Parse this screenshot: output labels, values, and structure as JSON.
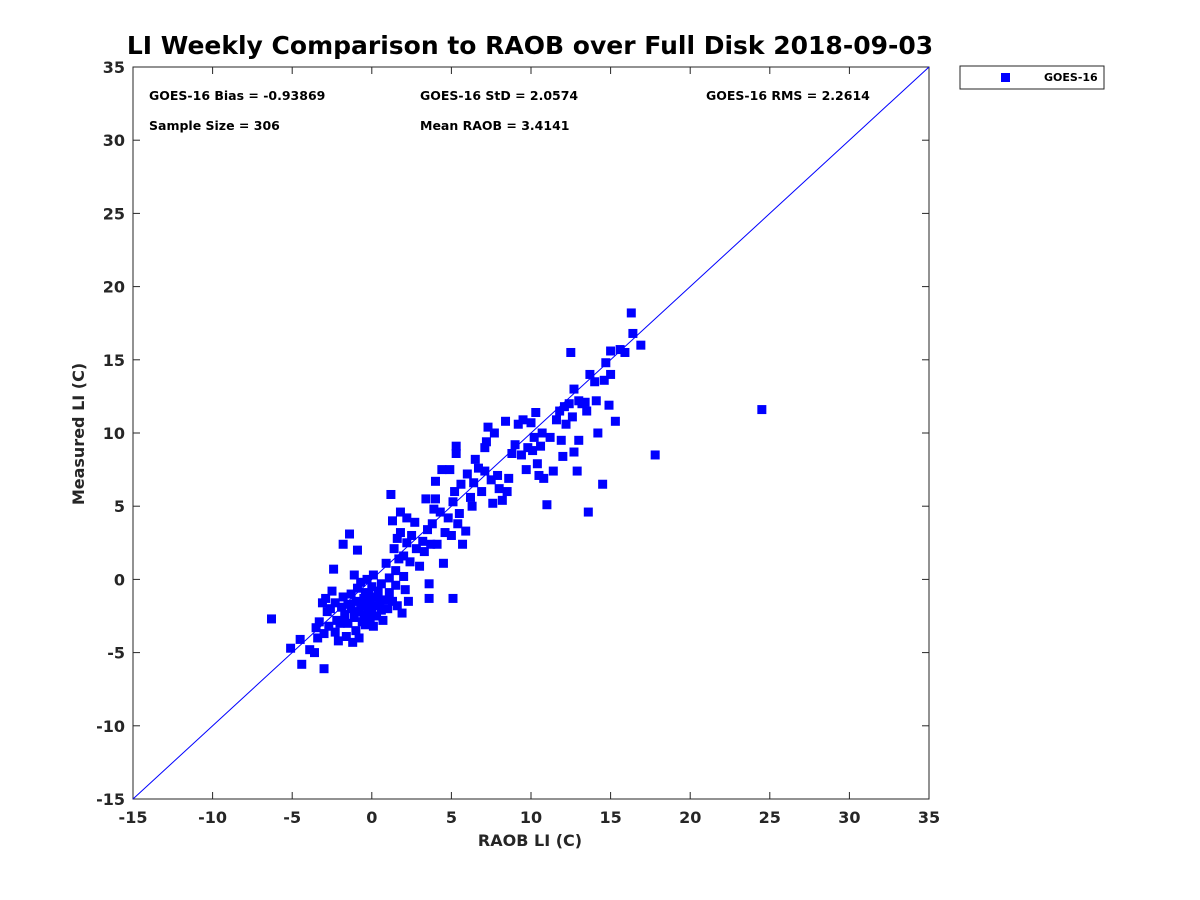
{
  "chart_data": {
    "type": "scatter",
    "title": "LI Weekly Comparison to RAOB over Full Disk 2018-09-03",
    "xlabel": "RAOB LI (C)",
    "ylabel": "Measured LI (C)",
    "xlim": [
      -15,
      35
    ],
    "ylim": [
      -15,
      35
    ],
    "xticks": [
      -15,
      -10,
      -5,
      0,
      5,
      10,
      15,
      20,
      25,
      30,
      35
    ],
    "yticks": [
      -15,
      -10,
      -5,
      0,
      5,
      10,
      15,
      20,
      25,
      30,
      35
    ],
    "grid": false,
    "legend": {
      "position": "outside-top-right",
      "entries": [
        "GOES-16"
      ]
    },
    "reference_line": {
      "name": "1:1 line",
      "x": [
        -15,
        35
      ],
      "y": [
        -15,
        35
      ]
    },
    "stats": {
      "bias": "GOES-16 Bias = -0.93869",
      "std": "GOES-16 StD = 2.0574",
      "rms": "GOES-16 RMS = 2.2614",
      "sample_size": "Sample Size = 306",
      "mean_raob": "Mean RAOB = 3.4141"
    },
    "series": [
      {
        "name": "GOES-16",
        "color": "#0000ff",
        "marker": "square",
        "points": [
          [
            -6.3,
            -2.7
          ],
          [
            -5.1,
            -4.7
          ],
          [
            -4.5,
            -4.1
          ],
          [
            -4.4,
            -5.8
          ],
          [
            -3.9,
            -4.8
          ],
          [
            -3.6,
            -5.0
          ],
          [
            -3.5,
            -3.3
          ],
          [
            -3.4,
            -4.0
          ],
          [
            -3.3,
            -2.9
          ],
          [
            -3.1,
            -1.6
          ],
          [
            -3.0,
            -6.1
          ],
          [
            -3.0,
            -3.7
          ],
          [
            -2.9,
            -1.3
          ],
          [
            -2.8,
            -2.2
          ],
          [
            -2.7,
            -3.2
          ],
          [
            -2.6,
            -2.0
          ],
          [
            -2.5,
            -0.8
          ],
          [
            -2.4,
            0.7
          ],
          [
            -2.3,
            -1.6
          ],
          [
            -2.3,
            -3.6
          ],
          [
            -2.2,
            -2.8
          ],
          [
            -2.1,
            -4.2
          ],
          [
            -2.0,
            -3.0
          ],
          [
            -1.9,
            -1.9
          ],
          [
            -1.8,
            2.4
          ],
          [
            -1.8,
            -1.2
          ],
          [
            -1.7,
            -2.4
          ],
          [
            -1.6,
            -3.9
          ],
          [
            -1.5,
            -1.7
          ],
          [
            -1.5,
            -3.0
          ],
          [
            -1.4,
            3.1
          ],
          [
            -1.3,
            -2.0
          ],
          [
            -1.3,
            -1.0
          ],
          [
            -1.2,
            -4.3
          ],
          [
            -1.1,
            -2.6
          ],
          [
            -1.1,
            0.3
          ],
          [
            -1.0,
            -1.5
          ],
          [
            -1.0,
            -3.5
          ],
          [
            -0.9,
            -0.6
          ],
          [
            -0.9,
            2.0
          ],
          [
            -0.8,
            -2.2
          ],
          [
            -0.8,
            -4.0
          ],
          [
            -0.7,
            -1.8
          ],
          [
            -0.7,
            -0.2
          ],
          [
            -0.6,
            -2.9
          ],
          [
            -0.5,
            -1.3
          ],
          [
            -0.5,
            -2.4
          ],
          [
            -0.4,
            -0.9
          ],
          [
            -0.4,
            -3.1
          ],
          [
            -0.3,
            -1.7
          ],
          [
            -0.3,
            0.0
          ],
          [
            -0.2,
            -2.2
          ],
          [
            -0.2,
            -1.1
          ],
          [
            -0.1,
            -2.7
          ],
          [
            -0.1,
            -1.5
          ],
          [
            0.0,
            -0.5
          ],
          [
            0.0,
            -2.0
          ],
          [
            0.1,
            0.3
          ],
          [
            0.1,
            -3.2
          ],
          [
            0.2,
            -1.8
          ],
          [
            0.3,
            -1.2
          ],
          [
            0.3,
            -2.5
          ],
          [
            0.4,
            -0.8
          ],
          [
            0.5,
            -1.6
          ],
          [
            0.6,
            -2.1
          ],
          [
            0.6,
            -0.3
          ],
          [
            0.7,
            -2.8
          ],
          [
            0.8,
            -1.4
          ],
          [
            0.9,
            1.1
          ],
          [
            1.0,
            -2.0
          ],
          [
            1.1,
            -0.9
          ],
          [
            1.1,
            0.1
          ],
          [
            1.2,
            5.8
          ],
          [
            1.3,
            -1.5
          ],
          [
            1.3,
            4.0
          ],
          [
            1.4,
            2.1
          ],
          [
            1.5,
            0.6
          ],
          [
            1.5,
            -0.4
          ],
          [
            1.6,
            2.8
          ],
          [
            1.6,
            -1.8
          ],
          [
            1.7,
            1.4
          ],
          [
            1.8,
            4.6
          ],
          [
            1.8,
            3.2
          ],
          [
            1.9,
            -2.3
          ],
          [
            2.0,
            0.2
          ],
          [
            2.0,
            1.6
          ],
          [
            2.1,
            -0.7
          ],
          [
            2.2,
            2.5
          ],
          [
            2.2,
            4.2
          ],
          [
            2.3,
            -1.5
          ],
          [
            2.4,
            1.2
          ],
          [
            2.5,
            3.0
          ],
          [
            2.7,
            3.9
          ],
          [
            2.8,
            2.1
          ],
          [
            3.0,
            0.9
          ],
          [
            3.2,
            2.6
          ],
          [
            3.3,
            1.9
          ],
          [
            3.4,
            5.5
          ],
          [
            3.5,
            3.4
          ],
          [
            3.6,
            -0.3
          ],
          [
            3.6,
            -1.3
          ],
          [
            3.7,
            2.4
          ],
          [
            3.8,
            3.8
          ],
          [
            3.9,
            4.8
          ],
          [
            4.0,
            5.5
          ],
          [
            4.0,
            6.7
          ],
          [
            4.1,
            2.4
          ],
          [
            4.3,
            4.6
          ],
          [
            4.4,
            7.5
          ],
          [
            4.5,
            1.1
          ],
          [
            4.6,
            3.2
          ],
          [
            4.8,
            4.2
          ],
          [
            4.9,
            7.5
          ],
          [
            5.0,
            3.0
          ],
          [
            5.1,
            5.3
          ],
          [
            5.1,
            -1.3
          ],
          [
            5.2,
            6.0
          ],
          [
            5.3,
            8.6
          ],
          [
            5.3,
            9.1
          ],
          [
            5.4,
            3.8
          ],
          [
            5.5,
            4.5
          ],
          [
            5.6,
            6.5
          ],
          [
            5.7,
            2.4
          ],
          [
            5.9,
            3.3
          ],
          [
            6.0,
            7.2
          ],
          [
            6.2,
            5.6
          ],
          [
            6.3,
            5.0
          ],
          [
            6.4,
            6.6
          ],
          [
            6.5,
            8.2
          ],
          [
            6.7,
            7.6
          ],
          [
            6.9,
            6.0
          ],
          [
            7.1,
            7.4
          ],
          [
            7.1,
            9.0
          ],
          [
            7.2,
            9.4
          ],
          [
            7.3,
            10.4
          ],
          [
            7.5,
            6.8
          ],
          [
            7.6,
            5.2
          ],
          [
            7.7,
            10.0
          ],
          [
            7.9,
            7.1
          ],
          [
            8.0,
            6.2
          ],
          [
            8.2,
            5.4
          ],
          [
            8.4,
            10.8
          ],
          [
            8.5,
            6.0
          ],
          [
            8.6,
            6.9
          ],
          [
            8.8,
            8.6
          ],
          [
            9.0,
            9.2
          ],
          [
            9.2,
            10.6
          ],
          [
            9.4,
            8.5
          ],
          [
            9.5,
            10.9
          ],
          [
            9.7,
            7.5
          ],
          [
            9.8,
            9.0
          ],
          [
            10.0,
            10.7
          ],
          [
            10.1,
            8.8
          ],
          [
            10.2,
            9.7
          ],
          [
            10.3,
            11.4
          ],
          [
            10.4,
            7.9
          ],
          [
            10.5,
            7.1
          ],
          [
            10.6,
            9.1
          ],
          [
            10.7,
            10.0
          ],
          [
            10.8,
            6.9
          ],
          [
            11.0,
            5.1
          ],
          [
            11.2,
            9.7
          ],
          [
            11.4,
            7.4
          ],
          [
            11.6,
            10.9
          ],
          [
            11.8,
            11.5
          ],
          [
            11.9,
            9.5
          ],
          [
            12.0,
            8.4
          ],
          [
            12.1,
            11.8
          ],
          [
            12.2,
            10.6
          ],
          [
            12.4,
            12.0
          ],
          [
            12.5,
            15.5
          ],
          [
            12.6,
            11.1
          ],
          [
            12.7,
            13.0
          ],
          [
            12.7,
            8.7
          ],
          [
            12.9,
            7.4
          ],
          [
            13.0,
            12.2
          ],
          [
            13.0,
            9.5
          ],
          [
            13.2,
            12.0
          ],
          [
            13.4,
            12.1
          ],
          [
            13.5,
            11.5
          ],
          [
            13.6,
            4.6
          ],
          [
            13.7,
            14.0
          ],
          [
            14.0,
            13.5
          ],
          [
            14.1,
            12.2
          ],
          [
            14.2,
            10.0
          ],
          [
            14.5,
            6.5
          ],
          [
            14.6,
            13.6
          ],
          [
            14.7,
            14.8
          ],
          [
            14.9,
            11.9
          ],
          [
            15.0,
            15.6
          ],
          [
            15.0,
            14.0
          ],
          [
            15.3,
            10.8
          ],
          [
            15.6,
            15.7
          ],
          [
            15.9,
            15.5
          ],
          [
            16.3,
            18.2
          ],
          [
            16.4,
            16.8
          ],
          [
            16.9,
            16.0
          ],
          [
            17.8,
            8.5
          ],
          [
            24.5,
            11.6
          ]
        ]
      }
    ]
  }
}
